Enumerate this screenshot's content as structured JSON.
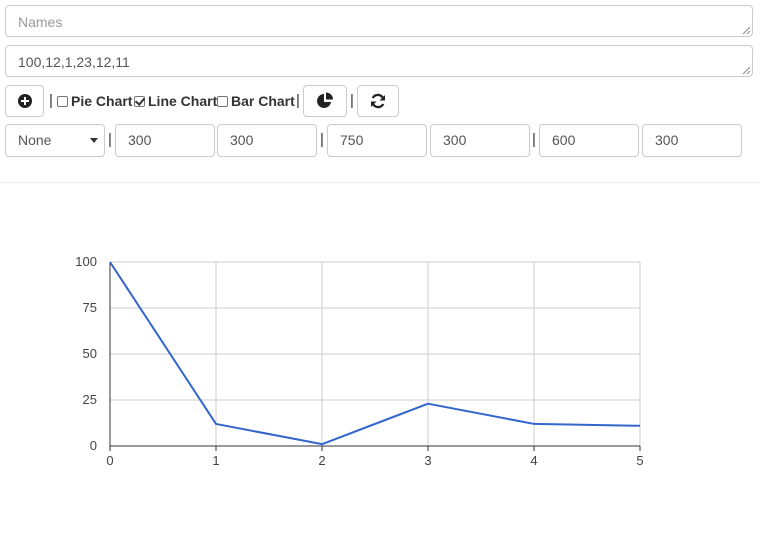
{
  "names_field": {
    "placeholder": "Names",
    "value": ""
  },
  "values_field": {
    "value": "100,12,1,23,12,11"
  },
  "toolbar": {
    "separator": "|",
    "pie_label": "Pie Chart",
    "line_label": "Line Chart",
    "bar_label": "Bar Chart",
    "pie_checked": false,
    "line_checked": true,
    "bar_checked": false
  },
  "settings": {
    "select_value": "None",
    "fields": [
      "300",
      "300",
      "750",
      "300",
      "600",
      "300"
    ]
  },
  "chart_data": {
    "type": "line",
    "x": [
      0,
      1,
      2,
      3,
      4,
      5
    ],
    "values": [
      100,
      12,
      1,
      23,
      12,
      11
    ],
    "title": "",
    "xlabel": "",
    "ylabel": "",
    "xlim": [
      0,
      5
    ],
    "ylim": [
      0,
      100
    ],
    "yticks": [
      0,
      25,
      50,
      75,
      100
    ],
    "xticks": [
      0,
      1,
      2,
      3,
      4,
      5
    ],
    "grid": true,
    "line_color": "#3366cc"
  }
}
